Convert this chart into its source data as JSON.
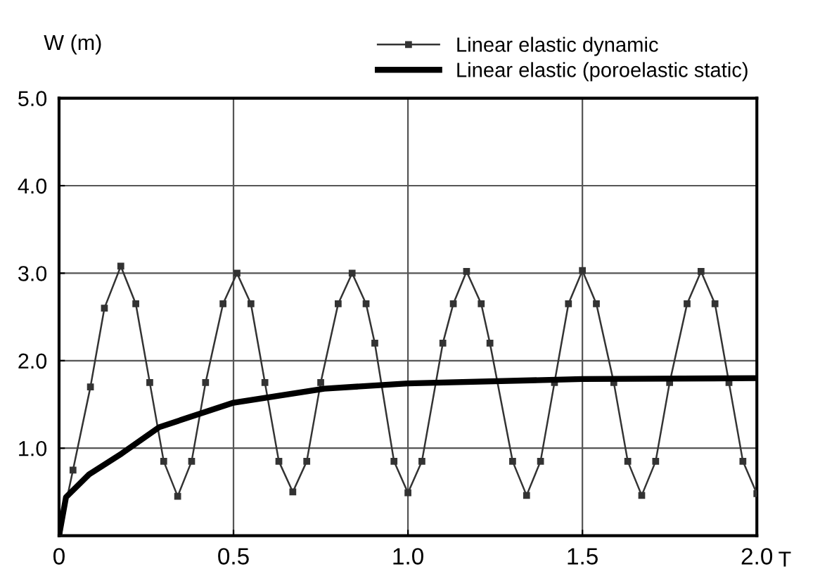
{
  "chart_data": {
    "type": "line",
    "xlabel": "T",
    "ylabel": "W (m)",
    "xlim": [
      0,
      2.0
    ],
    "ylim": [
      0,
      5.0
    ],
    "xticks": [
      0,
      0.5,
      {
        "value": 1.0,
        "label": "1.0"
      },
      1.5,
      {
        "value": 2.0,
        "label": "2.0"
      }
    ],
    "yticks": [
      {
        "value": 0,
        "label": null
      },
      {
        "value": 1.0,
        "label": "1.0"
      },
      {
        "value": 2.0,
        "label": "2.0"
      },
      {
        "value": 3.0,
        "label": "3.0"
      },
      {
        "value": 4.0,
        "label": "4.0"
      },
      {
        "value": 5.0,
        "label": "5.0"
      }
    ],
    "grid": true,
    "legend": "top right",
    "series": [
      {
        "name": "Linear elastic dynamic",
        "color": "#333333",
        "marker": "square",
        "line_style": "solid",
        "x": [
          0,
          0.04,
          0.09,
          0.13,
          0.177,
          0.22,
          0.26,
          0.3,
          0.34,
          0.38,
          0.42,
          0.47,
          0.51,
          0.55,
          0.59,
          0.63,
          0.67,
          0.71,
          0.75,
          0.8,
          0.84,
          0.88,
          0.905,
          0.96,
          1.0,
          1.04,
          1.1,
          1.13,
          1.168,
          1.21,
          1.235,
          1.3,
          1.34,
          1.38,
          1.42,
          1.46,
          1.5,
          1.54,
          1.59,
          1.63,
          1.67,
          1.71,
          1.75,
          1.8,
          1.84,
          1.88,
          1.92,
          1.96,
          2.0
        ],
        "values": [
          0,
          0.75,
          1.7,
          2.6,
          3.08,
          2.65,
          1.75,
          0.85,
          0.45,
          0.85,
          1.75,
          2.65,
          3.0,
          2.65,
          1.75,
          0.85,
          0.5,
          0.85,
          1.75,
          2.65,
          3.0,
          2.65,
          2.2,
          0.85,
          0.49,
          0.85,
          2.2,
          2.65,
          3.02,
          2.65,
          2.2,
          0.85,
          0.46,
          0.85,
          1.75,
          2.65,
          3.03,
          2.65,
          1.75,
          0.85,
          0.46,
          0.85,
          1.75,
          2.65,
          3.02,
          2.65,
          1.75,
          0.85,
          0.48
        ]
      },
      {
        "name": "Linear elastic (poroelastic static)",
        "color": "#000000",
        "marker": "none",
        "line_style": "solid",
        "x": [
          0,
          0.02,
          0.086,
          0.18,
          0.287,
          0.5,
          0.76,
          1.0,
          1.5,
          2.0
        ],
        "values": [
          0,
          0.44,
          0.7,
          0.94,
          1.24,
          1.52,
          1.68,
          1.74,
          1.79,
          1.8
        ]
      }
    ]
  }
}
